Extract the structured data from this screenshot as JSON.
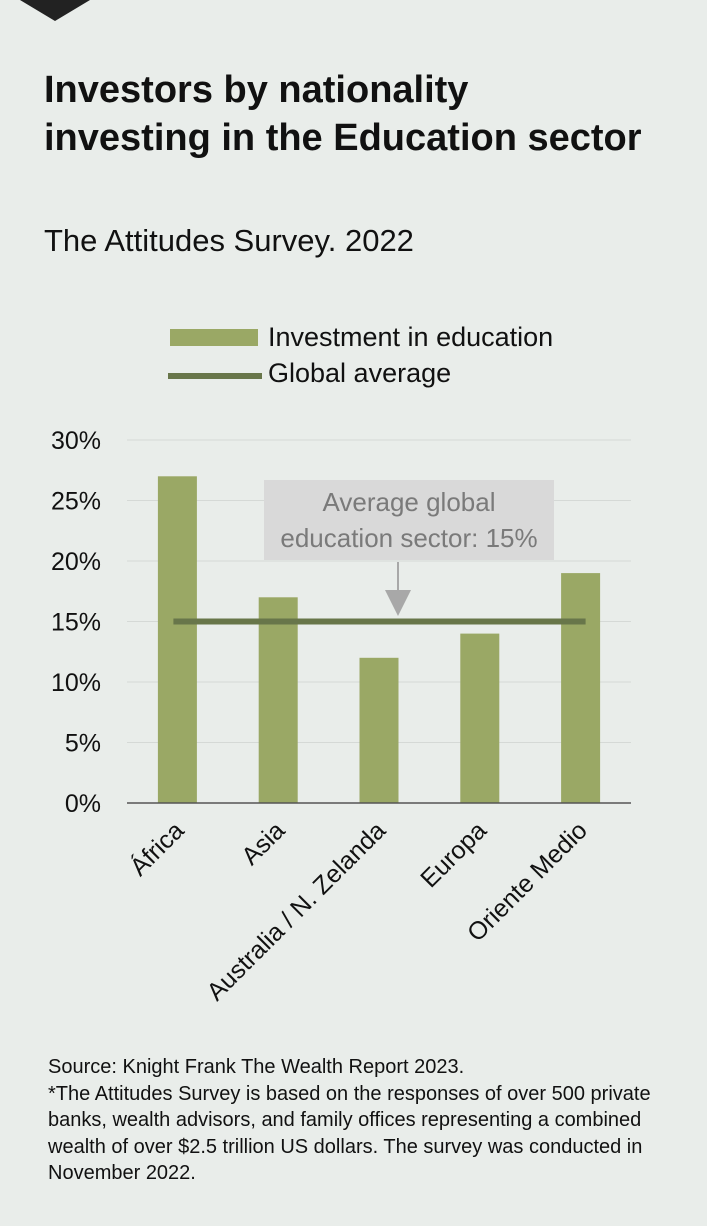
{
  "header": {
    "title": "Investors by nationality investing in the Education sector",
    "subtitle": "The Attitudes Survey. 2022"
  },
  "legend": {
    "bar_label": "Investment in education",
    "line_label": "Global average"
  },
  "annotation": {
    "line1": "Average global",
    "line2": "education sector: 15%"
  },
  "colors": {
    "bar": "#9aa865",
    "average_line": "#68764a",
    "annotation_box": "#d9d9d9",
    "annotation_arrow": "#a8a8a8",
    "gridline": "#d5d9d6",
    "axis": "#555555"
  },
  "chart_data": {
    "type": "bar",
    "title": "Investors by nationality investing in the Education sector",
    "subtitle": "The Attitudes Survey. 2022",
    "categories": [
      "África",
      "Asia",
      "Australia / N. Zelanda",
      "Europa",
      "Oriente Medio"
    ],
    "series": [
      {
        "name": "Investment in education",
        "values": [
          27,
          17,
          12,
          14,
          19
        ]
      }
    ],
    "reference_line": {
      "name": "Global average",
      "value": 15
    },
    "yticks": [
      "0%",
      "5%",
      "10%",
      "15%",
      "20%",
      "25%",
      "30%"
    ],
    "ylim": [
      0,
      30
    ],
    "unit": "%",
    "grid": true,
    "legend_position": "top"
  },
  "footer": {
    "source": "Source: Knight Frank The Wealth Report 2023.",
    "note": "*The Attitudes Survey is based on the responses of over 500 private banks, wealth advisors, and family offices representing a combined wealth of over $2.5 trillion US dollars. The survey was conducted in November 2022."
  }
}
